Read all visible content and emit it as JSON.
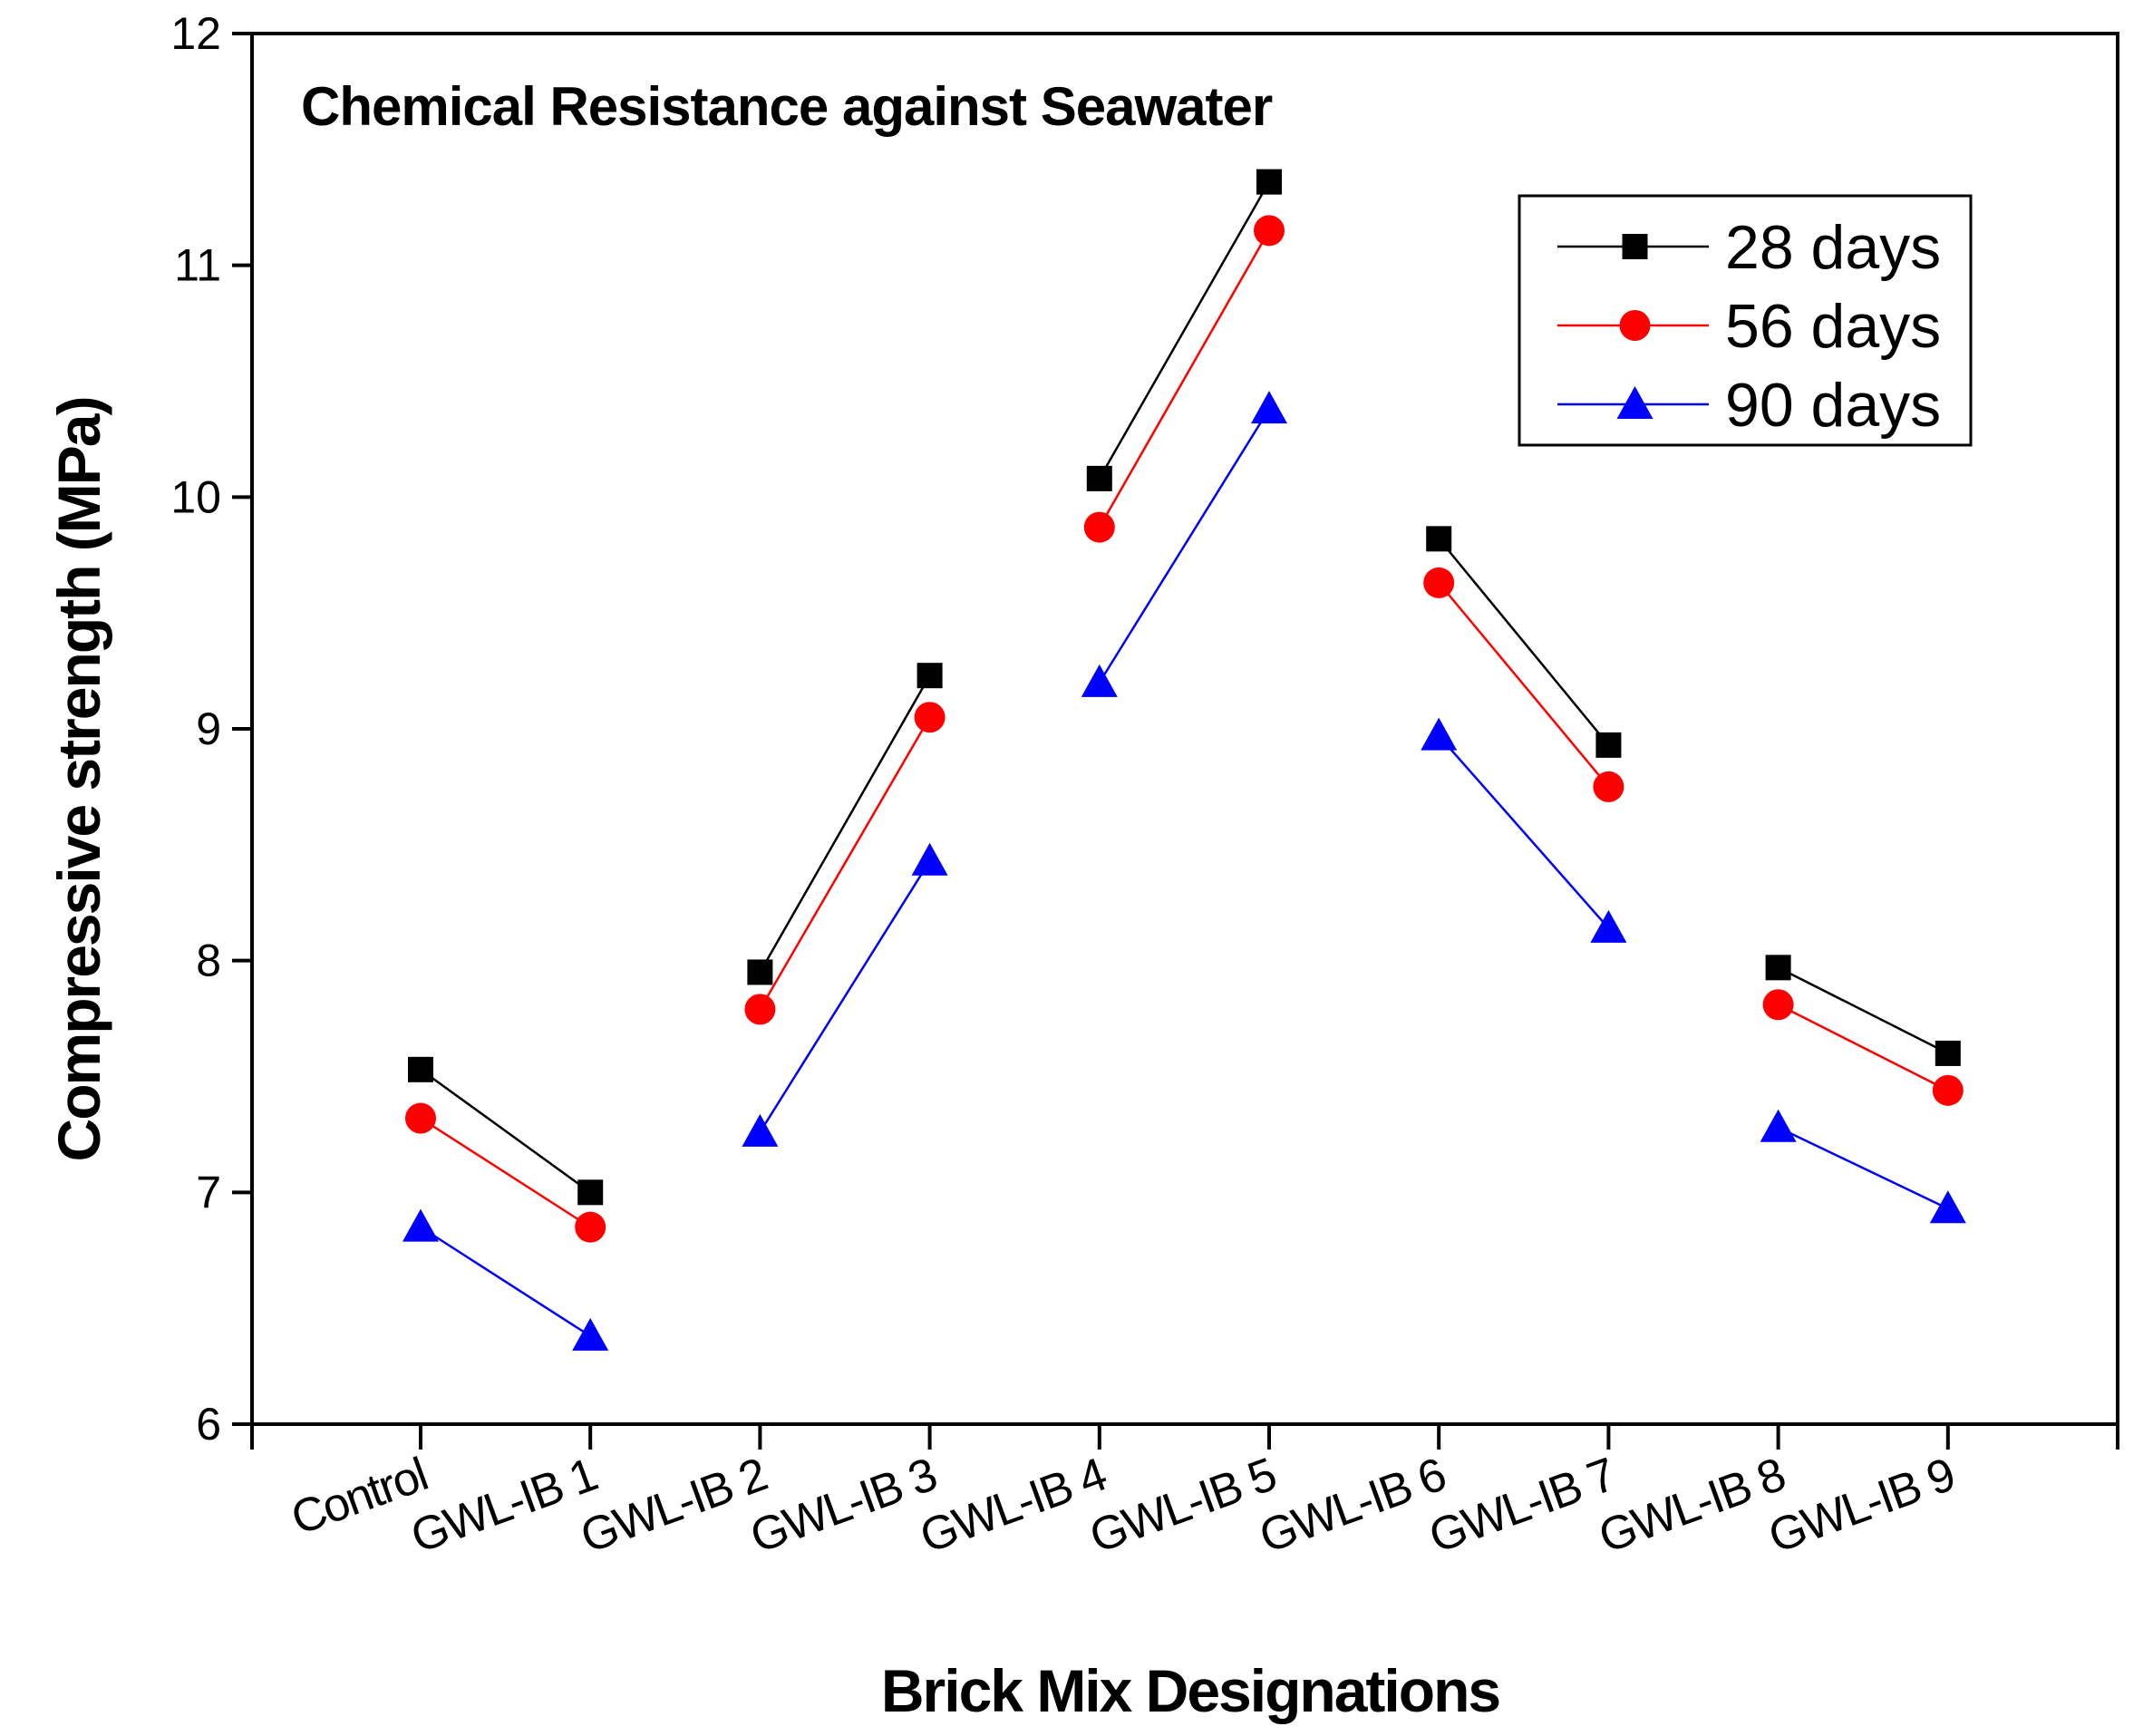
{
  "chart_data": {
    "type": "line",
    "title": "Chemical Resistance against Seawater",
    "xlabel": "Brick Mix Designations",
    "ylabel": "Compressive strength (MPa)",
    "ylim": [
      6,
      12
    ],
    "yticks": [
      "6",
      "7",
      "8",
      "9",
      "10",
      "11",
      "12"
    ],
    "categories": [
      "Control",
      "GWL-IB 1",
      "GWL-IB 2",
      "GWL-IB 3",
      "GWL-IB 4",
      "GWL-IB 5",
      "GWL-IB 6",
      "GWL-IB 7",
      "GWL-IB 8",
      "GWL-IB 9"
    ],
    "segments": [
      [
        0,
        1
      ],
      [
        2,
        3
      ],
      [
        4,
        5
      ],
      [
        6,
        7
      ],
      [
        8,
        9
      ]
    ],
    "legend_position": "top-right",
    "grid": false,
    "series": [
      {
        "name": "28 days",
        "marker": "square",
        "color": "#000000",
        "values": [
          7.53,
          7.0,
          7.95,
          9.23,
          10.08,
          11.36,
          9.82,
          8.93,
          7.97,
          7.6
        ]
      },
      {
        "name": "56 days",
        "marker": "circle",
        "color": "#ff0000",
        "values": [
          7.32,
          6.85,
          7.79,
          9.05,
          9.87,
          11.15,
          9.63,
          8.75,
          7.81,
          7.44
        ]
      },
      {
        "name": "90 days",
        "marker": "triangle",
        "color": "#0000ff",
        "values": [
          6.85,
          6.38,
          7.26,
          8.43,
          9.2,
          10.38,
          8.97,
          8.14,
          7.28,
          6.93
        ]
      }
    ]
  }
}
